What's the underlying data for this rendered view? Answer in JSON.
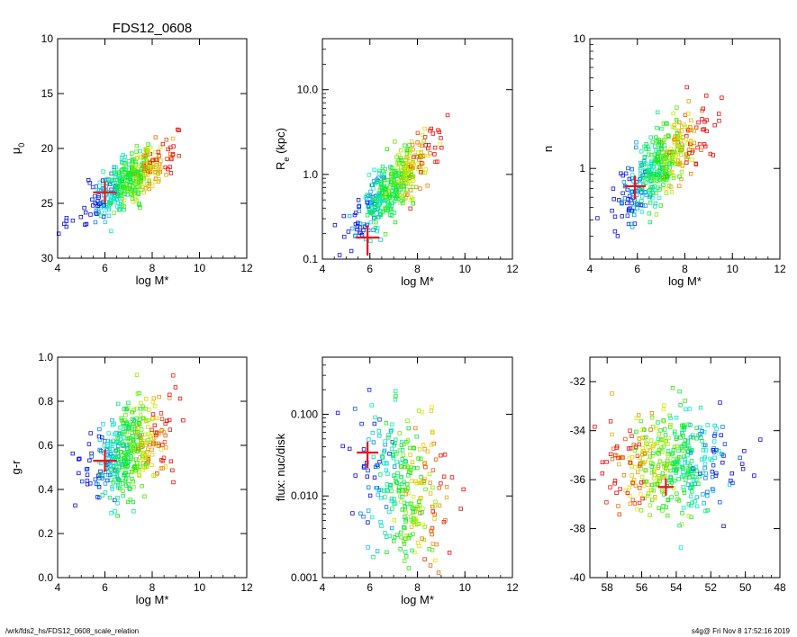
{
  "figure_title": "FDS12_0608",
  "footer": {
    "left": "/wrk/fds2_hs/FDS12_0608_scale_relation",
    "right": "s4g@  Fri Nov  8 17:52:16 2019"
  },
  "colors": {
    "marker_highlight": "#e8141c",
    "axis": "#000000"
  },
  "chart_data": [
    {
      "id": "mu0",
      "type": "scatter",
      "title": "FDS12_0608",
      "xlabel": "log M*",
      "ylabel": "μ0",
      "ylabel_main": "μ",
      "ylabel_sub": "0",
      "xlim": [
        4,
        12
      ],
      "ylim": [
        30,
        10
      ],
      "yscale": "linear",
      "xticks": [
        4,
        6,
        8,
        10,
        12
      ],
      "yticks": [
        10,
        15,
        20,
        25,
        30
      ],
      "xticklabels": [
        "4",
        "6",
        "8",
        "10",
        "12"
      ],
      "yticklabels": [
        "10",
        "15",
        "20",
        "25",
        "30"
      ],
      "cloud": {
        "n": 430,
        "x_center": 7.0,
        "x_sd": 0.85,
        "slope": -1.35,
        "pivot": 7.0,
        "y_at_pivot": 23.0,
        "scatter": 1.1,
        "log": false
      },
      "highlight": {
        "x": 6.0,
        "y": 24.0,
        "xerr": 0.5,
        "yerr": 1.0
      }
    },
    {
      "id": "re",
      "type": "scatter",
      "xlabel": "log M*",
      "ylabel": "Re (kpc)",
      "ylabel_main": "R",
      "ylabel_sub": "e",
      "ylabel_tail": " (kpc)",
      "xlim": [
        4,
        12
      ],
      "ylim": [
        0.1,
        40
      ],
      "yscale": "log",
      "xticks": [
        4,
        6,
        8,
        10,
        12
      ],
      "yticks": [
        0.1,
        1.0,
        10.0
      ],
      "xticklabels": [
        "4",
        "6",
        "8",
        "10",
        "12"
      ],
      "yticklabels": [
        "0.1",
        "1.0",
        "10.0"
      ],
      "cloud": {
        "n": 430,
        "x_center": 7.0,
        "x_sd": 0.85,
        "slope": 0.28,
        "pivot": 7.0,
        "y_at_pivot": 0.75,
        "scatter": 0.17,
        "log": true
      },
      "highlight": {
        "x": 5.9,
        "y": 0.18,
        "xerr": 0.5,
        "yerr": 0.07
      }
    },
    {
      "id": "n",
      "type": "scatter",
      "xlabel": "log M*",
      "ylabel": "n",
      "ylabel_main": "n",
      "xlim": [
        4,
        12
      ],
      "ylim": [
        0.2,
        10
      ],
      "yscale": "log",
      "xticks": [
        4,
        6,
        8,
        10,
        12
      ],
      "yticks": [
        1,
        10
      ],
      "xticklabels": [
        "4",
        "6",
        "8",
        "10",
        "12"
      ],
      "yticklabels": [
        "1",
        "10"
      ],
      "cloud": {
        "n": 430,
        "x_center": 7.0,
        "x_sd": 0.85,
        "slope": 0.16,
        "pivot": 7.0,
        "y_at_pivot": 1.05,
        "scatter": 0.13,
        "log": true
      },
      "highlight": {
        "x": 5.9,
        "y": 0.73,
        "xerr": 0.45,
        "yerr": 0.15
      }
    },
    {
      "id": "gr",
      "type": "scatter",
      "xlabel": "log M*",
      "ylabel": "g-r",
      "ylabel_main": "g-r",
      "xlim": [
        4,
        12
      ],
      "ylim": [
        0.0,
        1.0
      ],
      "yscale": "linear",
      "xticks": [
        4,
        6,
        8,
        10,
        12
      ],
      "yticks": [
        0.0,
        0.2,
        0.4,
        0.6,
        0.8,
        1.0
      ],
      "xticklabels": [
        "4",
        "6",
        "8",
        "10",
        "12"
      ],
      "yticklabels": [
        "0.0",
        "0.2",
        "0.4",
        "0.6",
        "0.8",
        "1.0"
      ],
      "cloud": {
        "n": 430,
        "x_center": 7.0,
        "x_sd": 0.85,
        "slope": 0.05,
        "pivot": 7.0,
        "y_at_pivot": 0.58,
        "scatter": 0.1,
        "log": false
      },
      "highlight": {
        "x": 6.0,
        "y": 0.53,
        "xerr": 0.5,
        "yerr": 0.05
      }
    },
    {
      "id": "flux",
      "type": "scatter",
      "xlabel": "log M*",
      "ylabel": "flux: nuc/disk",
      "ylabel_main": "flux: nuc/disk",
      "xlim": [
        4,
        12
      ],
      "ylim": [
        0.001,
        0.5
      ],
      "yscale": "log",
      "xticks": [
        4,
        6,
        8,
        10,
        12
      ],
      "yticks": [
        0.001,
        0.01,
        0.1
      ],
      "xticklabels": [
        "4",
        "6",
        "8",
        "10",
        "12"
      ],
      "yticklabels": [
        "0.001",
        "0.010",
        "0.100"
      ],
      "cloud": {
        "n": 300,
        "x_center": 7.4,
        "x_sd": 0.9,
        "slope": -0.15,
        "pivot": 7.4,
        "y_at_pivot": 0.012,
        "scatter": 0.45,
        "log": true
      },
      "highlight": {
        "x": 5.9,
        "y": 0.034,
        "xerr": 0.45,
        "yerr": 0.012
      }
    },
    {
      "id": "pos",
      "type": "scatter",
      "xlabel": "",
      "ylabel": "",
      "xlim": [
        59,
        48
      ],
      "ylim": [
        -40,
        -31
      ],
      "yscale": "linear",
      "xticks": [
        58,
        56,
        54,
        52,
        50,
        48
      ],
      "yticks": [
        -32,
        -34,
        -36,
        -38,
        -40
      ],
      "xticklabels": [
        "58",
        "56",
        "54",
        "52",
        "50",
        "48"
      ],
      "yticklabels": [
        "-32",
        "-34",
        "-36",
        "-38",
        "-40"
      ],
      "cloud": {
        "n": 430,
        "x_center": 54.2,
        "x_sd": 1.7,
        "slope": 0.0,
        "pivot": 54.2,
        "y_at_pivot": -35.3,
        "scatter": 1.05,
        "log": false
      },
      "highlight": {
        "x": 54.6,
        "y": -36.3,
        "xerr": 0.45,
        "yerr": 0.35
      }
    }
  ]
}
